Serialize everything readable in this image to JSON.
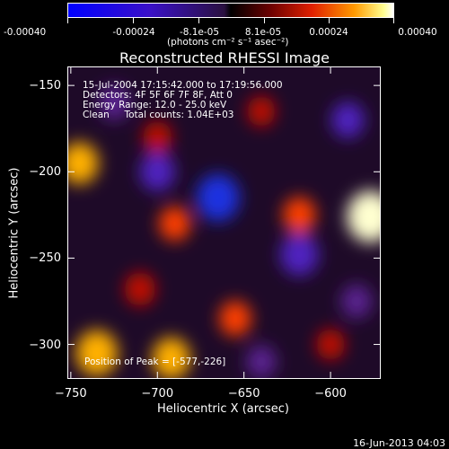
{
  "colorbar": {
    "tick_labels": [
      "-0.00040",
      "-0.00024",
      "-8.1e-05",
      "8.1e-05",
      "0.00024",
      "0.00040"
    ],
    "units": "(photons cm⁻² s⁻¹ asec⁻²)"
  },
  "chart_data": {
    "type": "heatmap",
    "title": "Reconstructed RHESSI Image",
    "xlabel": "Heliocentric X (arcsec)",
    "ylabel": "Heliocentric Y (arcsec)",
    "xlim": [
      -752,
      -571
    ],
    "ylim": [
      -320,
      -139
    ],
    "x_ticks": [
      -750,
      -700,
      -650,
      -600
    ],
    "y_ticks": [
      -150,
      -200,
      -250,
      -300
    ],
    "annotations": {
      "time": "15-Jul-2004 17:15:42.000 to 17:19:56.000",
      "detectors": "Detectors: 4F 5F 6F 7F 8F, Att 0",
      "energy": "Energy Range: 12.0 - 25.0 keV",
      "clean": "Clean     Total counts: 1.04E+03",
      "peak": "Position of Peak = [-577,-226]"
    },
    "value_range": [
      -0.0004,
      0.0004
    ],
    "peak_position": [
      -577,
      -226
    ],
    "sources": [
      {
        "x": -577,
        "y": -226,
        "value": 0.0004
      },
      {
        "x": -735,
        "y": -305,
        "value": 0.00032
      },
      {
        "x": -692,
        "y": -308,
        "value": 0.00026
      },
      {
        "x": -745,
        "y": -195,
        "value": 0.00026
      },
      {
        "x": -618,
        "y": -225,
        "value": 0.00018
      },
      {
        "x": -690,
        "y": -230,
        "value": 0.00016
      },
      {
        "x": -655,
        "y": -285,
        "value": 0.00017
      },
      {
        "x": -710,
        "y": -268,
        "value": 0.00015
      },
      {
        "x": -700,
        "y": -180,
        "value": 0.00012
      },
      {
        "x": -640,
        "y": -165,
        "value": 0.0001
      },
      {
        "x": -600,
        "y": -300,
        "value": 0.00011
      },
      {
        "x": -665,
        "y": -215,
        "value": -0.00034
      },
      {
        "x": -618,
        "y": -248,
        "value": -0.00027
      },
      {
        "x": -700,
        "y": -200,
        "value": -0.00022
      },
      {
        "x": -590,
        "y": -170,
        "value": -0.00018
      },
      {
        "x": -725,
        "y": -160,
        "value": -0.00016
      },
      {
        "x": -640,
        "y": -310,
        "value": -0.00014
      },
      {
        "x": -585,
        "y": -275,
        "value": -0.00015
      }
    ]
  },
  "datestamp": "16-Jun-2013 04:03"
}
